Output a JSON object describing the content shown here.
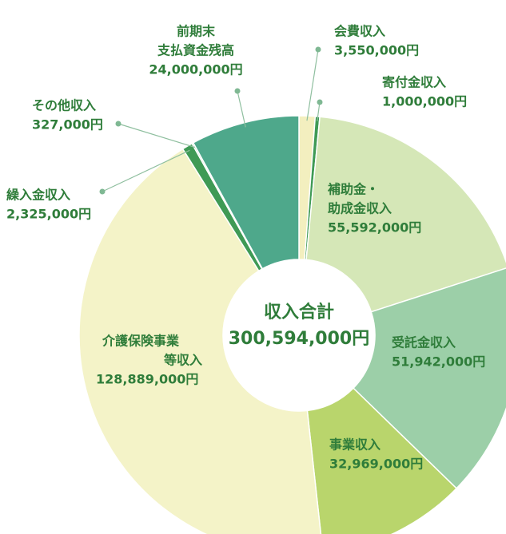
{
  "chart_data": {
    "type": "pie",
    "donut": true,
    "center_title": "収入合計",
    "center_label": "300,594,000円",
    "categories": [
      [
        "会費収入"
      ],
      [
        "寄付金収入"
      ],
      [
        "補助金・",
        "助成金収入"
      ],
      [
        "受託金収入"
      ],
      [
        "事業収入"
      ],
      [
        "介護保険事業",
        "等収入"
      ],
      [
        "繰入金収入"
      ],
      [
        "その他収入"
      ],
      [
        "前期末",
        "支払資金残高"
      ]
    ],
    "values": [
      3550000,
      1000000,
      55592000,
      51942000,
      32969000,
      128889000,
      2325000,
      327000,
      24000000
    ],
    "value_labels": [
      "3,550,000円",
      "1,000,000円",
      "55,592,000円",
      "51,942,000円",
      "32,969,000円",
      "128,889,000円",
      "2,325,000円",
      "327,000円",
      "24,000,000円"
    ],
    "colors": [
      "#f3efbf",
      "#3f9a55",
      "#d5e7b7",
      "#9ccfa8",
      "#b9d56c",
      "#f4f3c8",
      "#3f9a55",
      "#8fc8a6",
      "#4ea88b"
    ]
  }
}
